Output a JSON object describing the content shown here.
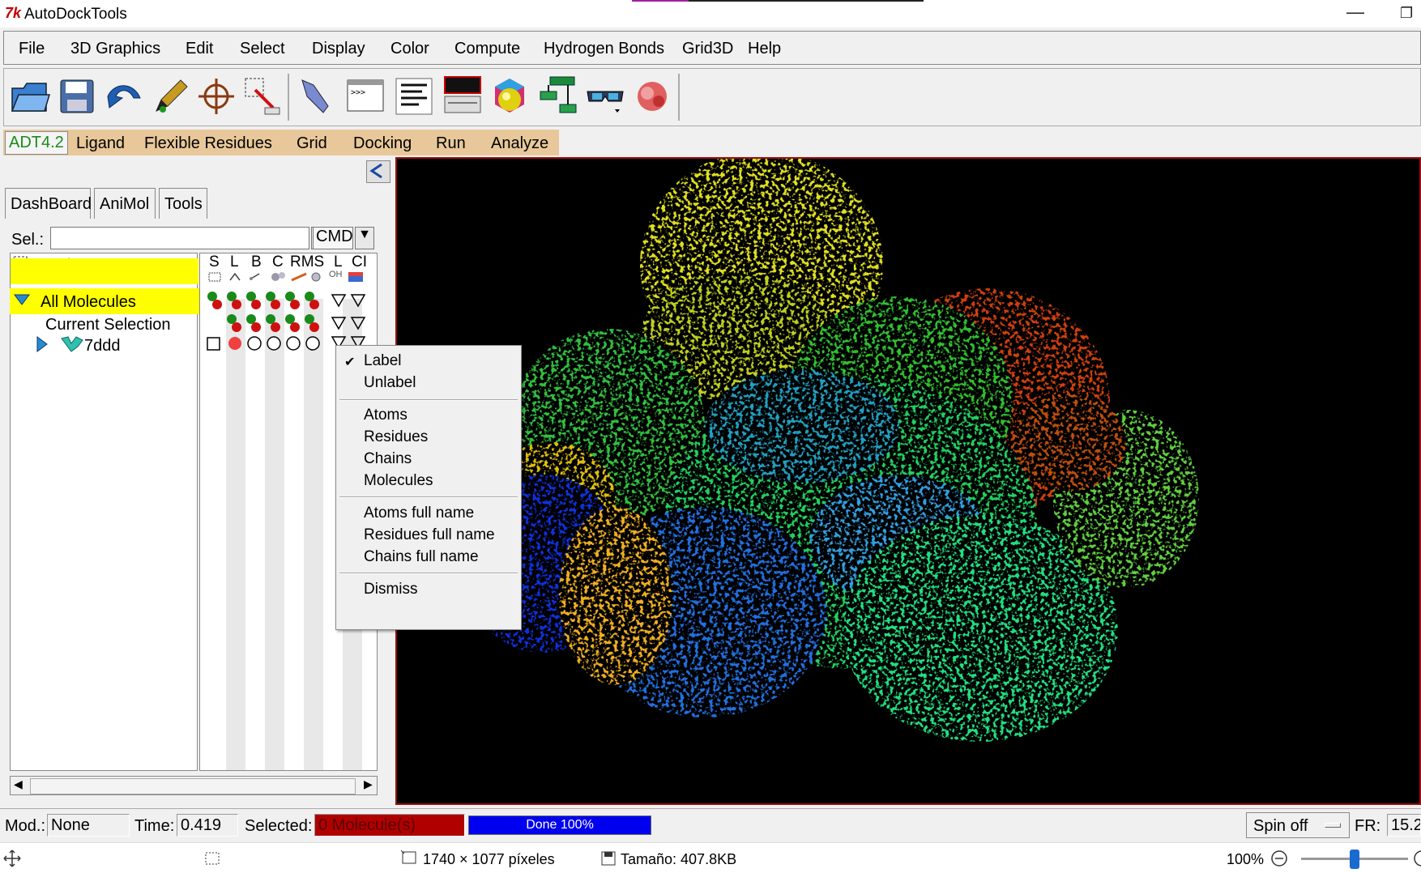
{
  "window": {
    "title": "AutoDockTools"
  },
  "menubar": [
    "File",
    "3D Graphics",
    "Edit",
    "Select",
    "Display",
    "Color",
    "Compute",
    "Hydrogen Bonds",
    "Grid3D",
    "Help"
  ],
  "adt_tabs": [
    "ADT4.2",
    "Ligand",
    "Flexible Residues",
    "Grid",
    "Docking",
    "Run",
    "Analyze"
  ],
  "left_tabs": [
    "DashBoard",
    "AniMol",
    "Tools"
  ],
  "selector": {
    "label": "Sel.:",
    "value": "",
    "cmd": "CMD"
  },
  "dashboard_columns": [
    "S",
    "L",
    "B",
    "C",
    "RMS",
    "L",
    "CI"
  ],
  "dashboard_sub": "OH",
  "tree": {
    "all_molecules": "All Molecules",
    "current_selection": "Current Selection",
    "molecule": "7ddd"
  },
  "context_menu": {
    "items": [
      {
        "label": "Label",
        "checked": true
      },
      {
        "label": "Unlabel"
      },
      {
        "label": "Atoms"
      },
      {
        "label": "Residues"
      },
      {
        "label": "Chains"
      },
      {
        "label": "Molecules"
      },
      {
        "label": "Atoms full name"
      },
      {
        "label": "Residues full name"
      },
      {
        "label": "Chains full name"
      },
      {
        "label": "Dismiss"
      }
    ],
    "check_mark": "✔"
  },
  "statusbar": {
    "mod_label": "Mod.:",
    "mod_value": "None",
    "time_label": "Time:",
    "time_value": "0.419",
    "selected_label": "Selected:",
    "selected_value": "0 Molecule(s)",
    "progress_text": "Done 100%",
    "progress": 1.0,
    "spin": "Spin off",
    "fr_label": "FR:",
    "fr_value": "15.2"
  },
  "viewer_status": {
    "dimensions": "1740 × 1077 píxeles",
    "size": "Tamaño: 407.8KB",
    "zoom": "100%"
  },
  "colors": {
    "selected_row": "#ffff00",
    "adt_tab_bg": "#e8c89a",
    "selected_field": "#b00000",
    "progress": "#0000ee",
    "viewer_border": "#9a1010"
  }
}
